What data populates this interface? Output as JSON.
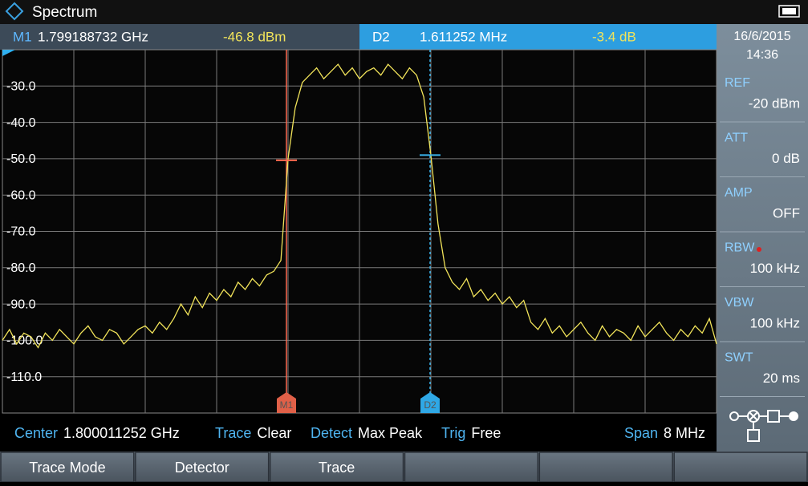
{
  "header": {
    "title": "Spectrum"
  },
  "marker_bar": {
    "m1": {
      "label": "M1",
      "freq": "1.799188732 GHz",
      "level": "-46.8 dBm"
    },
    "d2": {
      "label": "D2",
      "freq": "1.611252 MHz",
      "level": "-3.4 dB"
    }
  },
  "datetime": {
    "date": "16/6/2015",
    "time": "14:36"
  },
  "settings": [
    {
      "label": "REF",
      "value": "-20 dBm"
    },
    {
      "label": "ATT",
      "value": "0 dB"
    },
    {
      "label": "AMP",
      "value": "OFF"
    },
    {
      "label": "RBW",
      "value": "100 kHz"
    },
    {
      "label": "VBW",
      "value": "100 kHz"
    },
    {
      "label": "SWT",
      "value": "20 ms"
    }
  ],
  "status": [
    {
      "label": "Center",
      "value": "1.800011252 GHz"
    },
    {
      "label": "Trace",
      "value": "Clear"
    },
    {
      "label": "Detect",
      "value": "Max Peak"
    },
    {
      "label": "Trig",
      "value": "Free"
    },
    {
      "label": "Span",
      "value": "8 MHz"
    }
  ],
  "softkeys": [
    "Trace Mode",
    "Detector",
    "Trace"
  ],
  "chart_data": {
    "type": "line",
    "color": "#f2e45a",
    "grid": true,
    "ylim": [
      -120,
      -20
    ],
    "yticks": [
      {
        "value": -30,
        "label": "-30.0"
      },
      {
        "value": -40,
        "label": "-40.0"
      },
      {
        "value": -50,
        "label": "-50.0"
      },
      {
        "value": -60,
        "label": "-60.0"
      },
      {
        "value": -70,
        "label": "-70.0"
      },
      {
        "value": -80,
        "label": "-80.0"
      },
      {
        "value": -90,
        "label": "-90.0"
      },
      {
        "value": -100,
        "label": "-100.0"
      },
      {
        "value": -110,
        "label": "-110.0"
      }
    ],
    "values": [
      -100,
      -97,
      -101,
      -98,
      -99,
      -102,
      -98,
      -100,
      -97,
      -99,
      -101,
      -98,
      -96,
      -99,
      -100,
      -97,
      -98,
      -101,
      -99,
      -97,
      -96,
      -98,
      -95,
      -97,
      -94,
      -90,
      -93,
      -88,
      -91,
      -87,
      -89,
      -86,
      -88,
      -84,
      -86,
      -83,
      -85,
      -82,
      -81,
      -78,
      -50,
      -36,
      -29,
      -27,
      -25,
      -28,
      -26,
      -24,
      -27,
      -25,
      -28,
      -26,
      -25,
      -27,
      -24,
      -26,
      -28,
      -25,
      -27,
      -33,
      -49,
      -68,
      -80,
      -84,
      -86,
      -83,
      -88,
      -86,
      -89,
      -87,
      -90,
      -88,
      -91,
      -89,
      -95,
      -97,
      -94,
      -98,
      -96,
      -99,
      -97,
      -95,
      -98,
      -100,
      -96,
      -99,
      -97,
      -98,
      -100,
      -96,
      -99,
      -97,
      -95,
      -98,
      -100,
      -97,
      -99,
      -96,
      -98,
      -94,
      -101
    ]
  }
}
